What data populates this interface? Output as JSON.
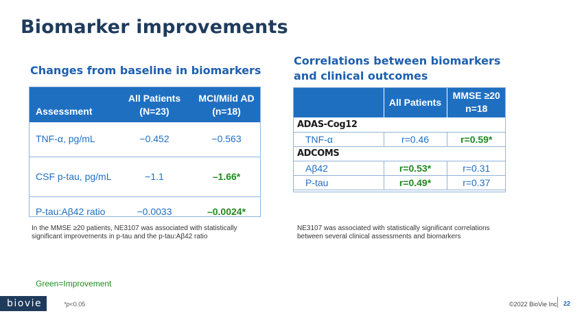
{
  "title": "Biomarker improvements",
  "left_section": {
    "heading": "Changes from baseline in biomarkers",
    "headers": {
      "assessment": "Assessment",
      "all_patients": "All Patients (N=23)",
      "mci": "MCI/Mild AD (n=18)"
    },
    "rows": [
      {
        "label": "TNF-α, pg/mL",
        "all": "−0.452",
        "mci": "−0.563",
        "mci_improved": false
      },
      {
        "label": "CSF p-tau, pg/mL",
        "all": "−1.1",
        "mci": "–1.66*",
        "mci_improved": true
      },
      {
        "label": "P-tau:Aβ42 ratio",
        "all": "−0.0033",
        "mci": "–0.0024*",
        "mci_improved": true
      }
    ],
    "note": "In the MMSE ≥20 patients, NE3107 was associated with statistically significant improvements in p-tau and the p-tau:Aβ42 ratio"
  },
  "right_section": {
    "heading": "Correlations between biomarkers and clinical outcomes",
    "headers": {
      "blank": "",
      "all_patients": "All Patients",
      "mmse": "MMSE ≥20 n=18"
    },
    "group1": "ADAS-Cog12",
    "row_tnf": {
      "label": "TNF-α",
      "all": "r=0.46",
      "mmse": "r=0.59*"
    },
    "group2": "ADCOMS",
    "row_ab42": {
      "label": "Aβ42",
      "all": "r=0.53*",
      "mmse": "r=0.31"
    },
    "row_ptau": {
      "label": "P-tau",
      "all": "r=0.49*",
      "mmse": "r=0.37"
    },
    "note": "NE3107 was associated with statistically significant correlations between several clinical assessments and biomarkers"
  },
  "legend": "Green=Improvement",
  "footnote": {
    "p": "*p",
    "rest": "<0.05"
  },
  "logo": "biovie",
  "copyright": "©2022 BioVie Inc.",
  "page_number": "22",
  "colors": {
    "title": "#1f3b5c",
    "accent_blue": "#1f6fc1",
    "improvement_green": "#1e8a1e"
  }
}
